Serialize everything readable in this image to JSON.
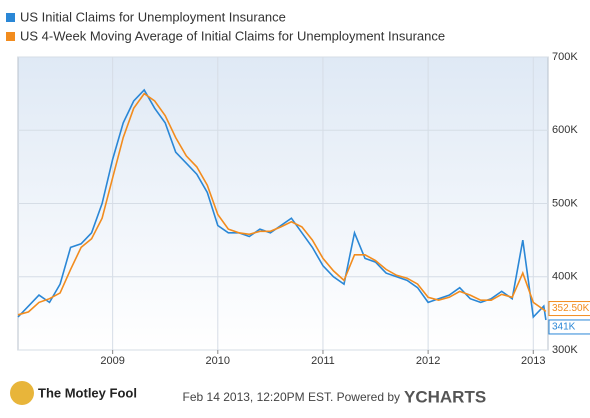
{
  "chart_data": {
    "type": "line",
    "x": [
      2008.1,
      2008.2,
      2008.3,
      2008.4,
      2008.5,
      2008.6,
      2008.7,
      2008.8,
      2008.9,
      2009.0,
      2009.1,
      2009.2,
      2009.3,
      2009.4,
      2009.5,
      2009.6,
      2009.7,
      2009.8,
      2009.9,
      2010.0,
      2010.1,
      2010.2,
      2010.3,
      2010.4,
      2010.5,
      2010.6,
      2010.7,
      2010.8,
      2010.9,
      2011.0,
      2011.1,
      2011.2,
      2011.3,
      2011.4,
      2011.5,
      2011.6,
      2011.7,
      2011.8,
      2011.9,
      2012.0,
      2012.1,
      2012.2,
      2012.3,
      2012.4,
      2012.5,
      2012.6,
      2012.7,
      2012.8,
      2012.9,
      2013.0,
      2013.1,
      2013.12
    ],
    "series": [
      {
        "name": "US Initial Claims for Unemployment Insurance",
        "color": "#2a87d6",
        "end_label": "341K",
        "values": [
          345000,
          360000,
          375000,
          365000,
          390000,
          440000,
          445000,
          460000,
          500000,
          560000,
          610000,
          640000,
          655000,
          630000,
          610000,
          570000,
          555000,
          540000,
          515000,
          470000,
          460000,
          460000,
          455000,
          465000,
          460000,
          470000,
          480000,
          460000,
          440000,
          415000,
          400000,
          390000,
          460000,
          425000,
          420000,
          405000,
          400000,
          395000,
          385000,
          365000,
          370000,
          375000,
          385000,
          370000,
          365000,
          370000,
          380000,
          370000,
          450000,
          345000,
          360000,
          341000
        ]
      },
      {
        "name": "US 4-Week Moving Average of Initial Claims for Unemployment Insurance",
        "color": "#f28c1e",
        "end_label": "352.50K",
        "values": [
          348000,
          352000,
          365000,
          370000,
          378000,
          410000,
          440000,
          452000,
          480000,
          535000,
          590000,
          630000,
          650000,
          640000,
          620000,
          590000,
          565000,
          550000,
          525000,
          485000,
          465000,
          460000,
          458000,
          462000,
          462000,
          468000,
          475000,
          468000,
          450000,
          425000,
          408000,
          395000,
          430000,
          430000,
          422000,
          410000,
          402000,
          398000,
          390000,
          372000,
          368000,
          372000,
          380000,
          375000,
          368000,
          368000,
          376000,
          372000,
          405000,
          365000,
          355000,
          352500
        ]
      }
    ],
    "xlim": [
      2008.1,
      2013.14
    ],
    "xticks": [
      2009,
      2010,
      2011,
      2012,
      2013
    ],
    "ylim": [
      300000,
      700000
    ],
    "yticks": [
      {
        "value": 300000,
        "label": "300K"
      },
      {
        "value": 400000,
        "label": "400K"
      },
      {
        "value": 500000,
        "label": "500K"
      },
      {
        "value": 600000,
        "label": "600K"
      },
      {
        "value": 700000,
        "label": "700K"
      }
    ],
    "grid": true,
    "footer": {
      "logo": "The Motley Fool",
      "timestamp": "Feb 14 2013, 12:20PM EST. Powered by",
      "brand": "YCHARTS"
    }
  }
}
